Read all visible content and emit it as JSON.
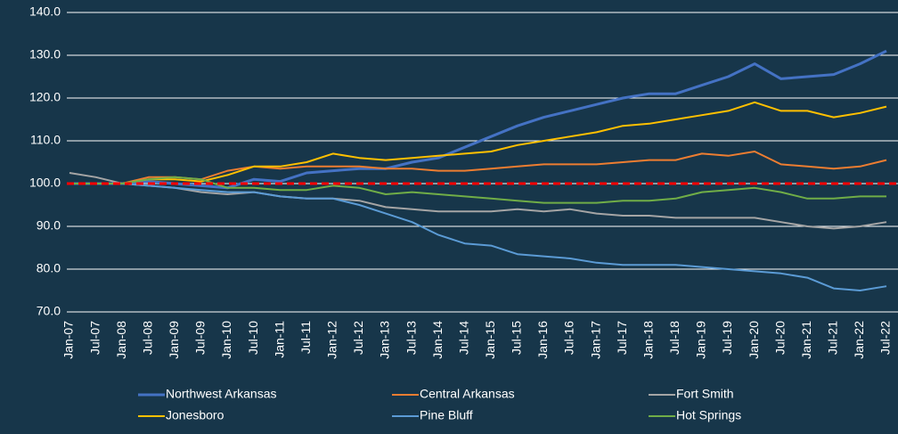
{
  "chart_data": {
    "type": "line",
    "categories": [
      "Jan-07",
      "Jul-07",
      "Jan-08",
      "Jul-08",
      "Jan-09",
      "Jul-09",
      "Jan-10",
      "Jul-10",
      "Jan-11",
      "Jul-11",
      "Jan-12",
      "Jul-12",
      "Jan-13",
      "Jul-13",
      "Jan-14",
      "Jul-14",
      "Jan-15",
      "Jul-15",
      "Jan-16",
      "Jul-16",
      "Jan-17",
      "Jul-17",
      "Jan-18",
      "Jul-18",
      "Jan-19",
      "Jul-19",
      "Jan-20",
      "Jul-20",
      "Jan-21",
      "Jul-21",
      "Jan-22",
      "Jul-22"
    ],
    "series": [
      {
        "name": "Northwest Arkansas",
        "color": "#4472c4",
        "width": 3,
        "values": [
          100,
          100,
          100,
          100.5,
          100,
          99.5,
          99,
          101,
          100.5,
          102.5,
          103,
          103.5,
          103.5,
          105,
          106,
          108.5,
          111,
          113.5,
          115.5,
          117,
          118.5,
          120,
          121,
          121,
          123,
          125,
          128,
          124.5,
          125,
          125.5,
          128,
          131
        ]
      },
      {
        "name": "Central Arkansas",
        "color": "#ed7d31",
        "width": 2,
        "values": [
          100,
          100,
          100,
          101.5,
          101.5,
          101,
          103,
          104,
          103.5,
          104,
          104,
          104,
          103.5,
          103.5,
          103,
          103,
          103.5,
          104,
          104.5,
          104.5,
          104.5,
          105,
          105.5,
          105.5,
          107,
          106.5,
          107.5,
          104.5,
          104,
          103.5,
          104,
          105.5
        ]
      },
      {
        "name": "Fort Smith",
        "color": "#a5a5a5",
        "width": 2,
        "values": [
          102.5,
          101.5,
          100,
          99.5,
          99,
          98,
          97.5,
          98,
          97,
          96.5,
          96.5,
          96,
          94.5,
          94,
          93.5,
          93.5,
          93.5,
          94,
          93.5,
          94,
          93,
          92.5,
          92.5,
          92,
          92,
          92,
          92,
          91,
          90,
          89.5,
          90,
          91
        ]
      },
      {
        "name": "Jonesboro",
        "color": "#ffc000",
        "width": 2,
        "values": [
          100,
          100,
          100,
          101,
          101,
          100.5,
          102,
          104,
          104,
          105,
          107,
          106,
          105.5,
          106,
          106.5,
          107,
          107.5,
          109,
          110,
          111,
          112,
          113.5,
          114,
          115,
          116,
          117,
          119,
          117,
          117,
          115.5,
          116.5,
          118
        ]
      },
      {
        "name": "Pine Bluff",
        "color": "#5b9bd5",
        "width": 2,
        "values": [
          100,
          100,
          100,
          99.5,
          99,
          98.5,
          98,
          98,
          97,
          96.5,
          96.5,
          95,
          93,
          91,
          88,
          86,
          85.5,
          83.5,
          83,
          82.5,
          81.5,
          81,
          81,
          81,
          80.5,
          80,
          79.5,
          79,
          78,
          75.5,
          75,
          76
        ]
      },
      {
        "name": "Hot Springs",
        "color": "#70ad47",
        "width": 2,
        "values": [
          100,
          100,
          100,
          101,
          101.5,
          101,
          99,
          99,
          98.5,
          98.5,
          99.5,
          99,
          97.5,
          98,
          97.5,
          97,
          96.5,
          96,
          95.5,
          95.5,
          95.5,
          96,
          96,
          96.5,
          98,
          98.5,
          99,
          98,
          96.5,
          96.5,
          97,
          97
        ]
      }
    ],
    "reference_line": {
      "value": 100,
      "color": "#ff0000"
    },
    "ylim": [
      70,
      140
    ],
    "yticks": [
      {
        "value": 70,
        "label": "70.0"
      },
      {
        "value": 80,
        "label": "80.0"
      },
      {
        "value": 90,
        "label": "90.0"
      },
      {
        "value": 100,
        "label": "100.0"
      },
      {
        "value": 110,
        "label": "110.0"
      },
      {
        "value": 120,
        "label": "120.0"
      },
      {
        "value": 130,
        "label": "130.0"
      },
      {
        "value": 140,
        "label": "140.0"
      }
    ],
    "grid": true,
    "legend": "bottom"
  }
}
